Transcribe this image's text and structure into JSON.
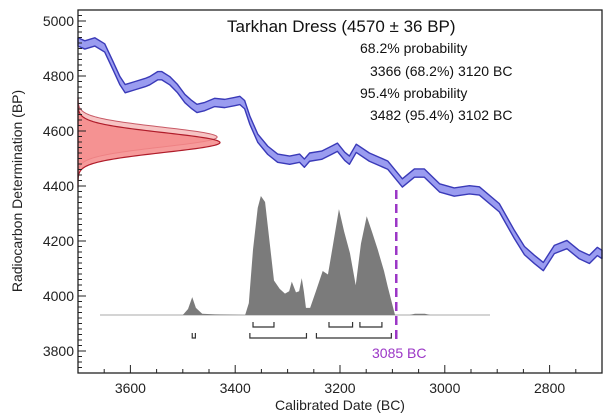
{
  "chart_data": {
    "type": "area",
    "title": "Tarkhan Dress (4570 ± 36 BP)",
    "annotations": {
      "p68_label": "68.2% probability",
      "p68_range": "3366 (68.2%) 3120 BC",
      "p95_label": "95.4% probability",
      "p95_range": "3482 (95.4%) 3102 BC",
      "marker_label": "3085 BC"
    },
    "marker_year": 3085,
    "xlabel": "Calibrated Date (BC)",
    "ylabel": "Radiocarbon Determination (BP)",
    "xlim": [
      3700,
      2700
    ],
    "ylim": [
      3720,
      5040
    ],
    "x_ticks": [
      "3600",
      "3400",
      "3200",
      "3000",
      "2800"
    ],
    "y_ticks": [
      "3800",
      "4000",
      "4200",
      "4400",
      "4600",
      "4800",
      "5000"
    ],
    "radiocarbon": {
      "mean": 4570,
      "sigma": 36
    },
    "calibration_curve": {
      "band_halfwidth": 15,
      "x": [
        3700,
        3687,
        3668,
        3649,
        3633,
        3620,
        3610,
        3591,
        3572,
        3563,
        3548,
        3540,
        3525,
        3510,
        3496,
        3483,
        3473,
        3458,
        3439,
        3420,
        3401,
        3391,
        3382,
        3372,
        3357,
        3338,
        3319,
        3296,
        3277,
        3268,
        3258,
        3235,
        3216,
        3205,
        3191,
        3182,
        3169,
        3144,
        3109,
        3081,
        3058,
        3039,
        3010,
        2982,
        2953,
        2934,
        2896,
        2867,
        2848,
        2829,
        2812,
        2791,
        2767,
        2744,
        2724,
        2709,
        2700
      ],
      "y": [
        4924,
        4913,
        4924,
        4902,
        4837,
        4783,
        4754,
        4765,
        4776,
        4783,
        4801,
        4801,
        4783,
        4754,
        4718,
        4696,
        4682,
        4689,
        4704,
        4700,
        4707,
        4711,
        4696,
        4639,
        4574,
        4530,
        4501,
        4494,
        4501,
        4483,
        4505,
        4512,
        4530,
        4541,
        4508,
        4494,
        4537,
        4505,
        4476,
        4411,
        4447,
        4447,
        4393,
        4378,
        4386,
        4382,
        4321,
        4223,
        4165,
        4133,
        4107,
        4169,
        4187,
        4151,
        4133,
        4162,
        4151
      ]
    },
    "calibrated_distribution": {
      "x": [
        3500,
        3490,
        3482,
        3475,
        3463,
        3439,
        3381,
        3374,
        3366,
        3357,
        3351,
        3343,
        3334,
        3326,
        3315,
        3305,
        3297,
        3292,
        3284,
        3278,
        3273,
        3269,
        3265,
        3257,
        3246,
        3233,
        3223,
        3213,
        3202,
        3192,
        3181,
        3170,
        3160,
        3149,
        3139,
        3128,
        3116,
        3109,
        3095,
        3067,
        3057,
        3038,
        3028
      ],
      "relative_density": [
        0,
        0.05,
        0.15,
        0.06,
        0.01,
        0.005,
        0,
        0.1,
        0.55,
        0.9,
        1.0,
        0.95,
        0.6,
        0.29,
        0.22,
        0.18,
        0.2,
        0.28,
        0.19,
        0.2,
        0.31,
        0.2,
        0.06,
        0.06,
        0.2,
        0.37,
        0.34,
        0.6,
        0.89,
        0.7,
        0.52,
        0.25,
        0.6,
        0.83,
        0.7,
        0.55,
        0.37,
        0.24,
        0,
        0,
        0.01,
        0.01,
        0
      ]
    },
    "ranges_68": [
      [
        3366,
        3326
      ],
      [
        3221,
        3176
      ],
      [
        3162,
        3120
      ]
    ],
    "ranges_95": [
      [
        3482,
        3476
      ],
      [
        3372,
        3264
      ],
      [
        3245,
        3102
      ]
    ],
    "colors": {
      "curve_fill": "#9a9cf0",
      "curve_stroke": "#3a3ab8",
      "gaussian_fill": "#f58a8a",
      "gaussian_stroke": "#b01c2a",
      "gaussian_outer": "#f7c4c4",
      "distribution": "#7b7b7b",
      "marker": "#9b36c6"
    },
    "grid": false
  }
}
